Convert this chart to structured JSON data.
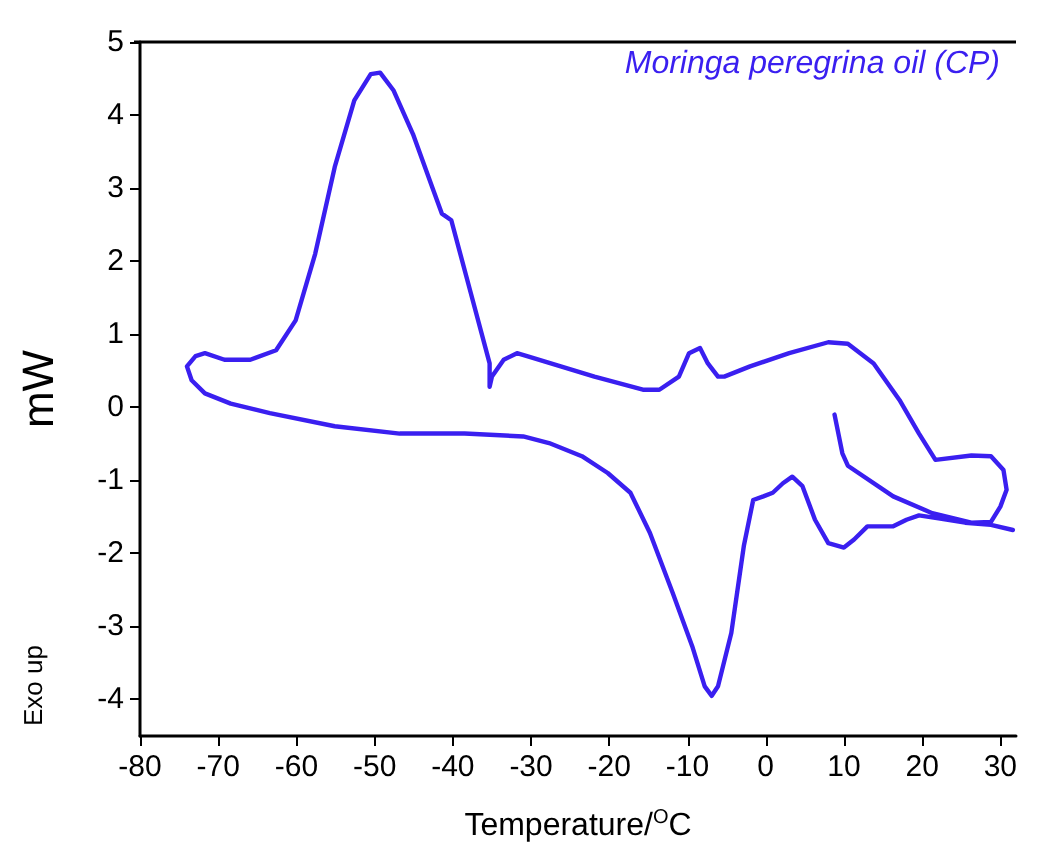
{
  "chart_data": {
    "type": "line",
    "xlabel": "Temperature/$^{O}$C",
    "ylabel": "mW",
    "annotations": [
      "Moringa peregrina oil (CP)",
      "Exo up"
    ],
    "xlim": [
      -80,
      32
    ],
    "xticks": [
      -80,
      -70,
      -60,
      -50,
      -40,
      -30,
      -20,
      -10,
      0,
      10,
      20,
      30
    ],
    "ylim": [
      -4.5,
      5
    ],
    "yticks": [
      -4,
      -3,
      -2,
      -1,
      0,
      1,
      2,
      3,
      4,
      5
    ],
    "grid": false,
    "marker": "none",
    "line_style": "solid",
    "series": [
      {
        "color": "#3a1ff0",
        "x": [
          8.8,
          9.8,
          10.5,
          16.3,
          21.3,
          26.3,
          28.8,
          30,
          30.8,
          30.4,
          28.8,
          26.3,
          21.7,
          19.6,
          17.1,
          13.8,
          10.5,
          8,
          3,
          -2,
          -5.3,
          -6.1,
          -7.4,
          -8.4,
          -9.8,
          -11.1,
          -13.6,
          -15.7,
          -21.9,
          -30.2,
          -31.8,
          -33.5,
          -35,
          -35.3,
          -35.3,
          -37.7,
          -40.2,
          -41.4,
          -42.6,
          -45.1,
          -47.6,
          -49.3,
          -50.5,
          -52.6,
          -55.1,
          -57.6,
          -60.1,
          -62.6,
          -65.9,
          -69.2,
          -71.7,
          -72.9,
          -74,
          -73.4,
          -71.7,
          -68.4,
          -63.4,
          -55.1,
          -46.8,
          -38.5,
          -31,
          -27.7,
          -23.5,
          -20.2,
          -17.3,
          -14.8,
          -11.9,
          -9.4,
          -7.8,
          -6.9,
          -6.1,
          -4.4,
          -2.8,
          -1.6,
          -0.3,
          0.9,
          2.2,
          3.4,
          4.7,
          6.3,
          8,
          10,
          11.3,
          13,
          16.3,
          18,
          19.6,
          22.1,
          25.5,
          28.8,
          31.6
        ],
        "values": [
          -0.1,
          -0.63,
          -0.8,
          -1.22,
          -1.45,
          -1.58,
          -1.57,
          -1.36,
          -1.13,
          -0.86,
          -0.67,
          -0.66,
          -0.72,
          -0.36,
          0.1,
          0.6,
          0.87,
          0.89,
          0.74,
          0.56,
          0.42,
          0.42,
          0.6,
          0.81,
          0.74,
          0.42,
          0.24,
          0.24,
          0.42,
          0.69,
          0.74,
          0.65,
          0.42,
          0.28,
          0.6,
          1.56,
          2.56,
          2.65,
          3.0,
          3.74,
          4.34,
          4.58,
          4.56,
          4.2,
          3.29,
          2.1,
          1.19,
          0.78,
          0.65,
          0.65,
          0.74,
          0.7,
          0.56,
          0.37,
          0.19,
          0.05,
          -0.08,
          -0.26,
          -0.36,
          -0.36,
          -0.4,
          -0.49,
          -0.67,
          -0.9,
          -1.17,
          -1.72,
          -2.54,
          -3.27,
          -3.82,
          -3.95,
          -3.82,
          -3.09,
          -1.9,
          -1.27,
          -1.22,
          -1.17,
          -1.04,
          -0.95,
          -1.08,
          -1.54,
          -1.86,
          -1.92,
          -1.81,
          -1.63,
          -1.63,
          -1.54,
          -1.48,
          -1.52,
          -1.58,
          -1.61,
          -1.68
        ]
      }
    ]
  }
}
